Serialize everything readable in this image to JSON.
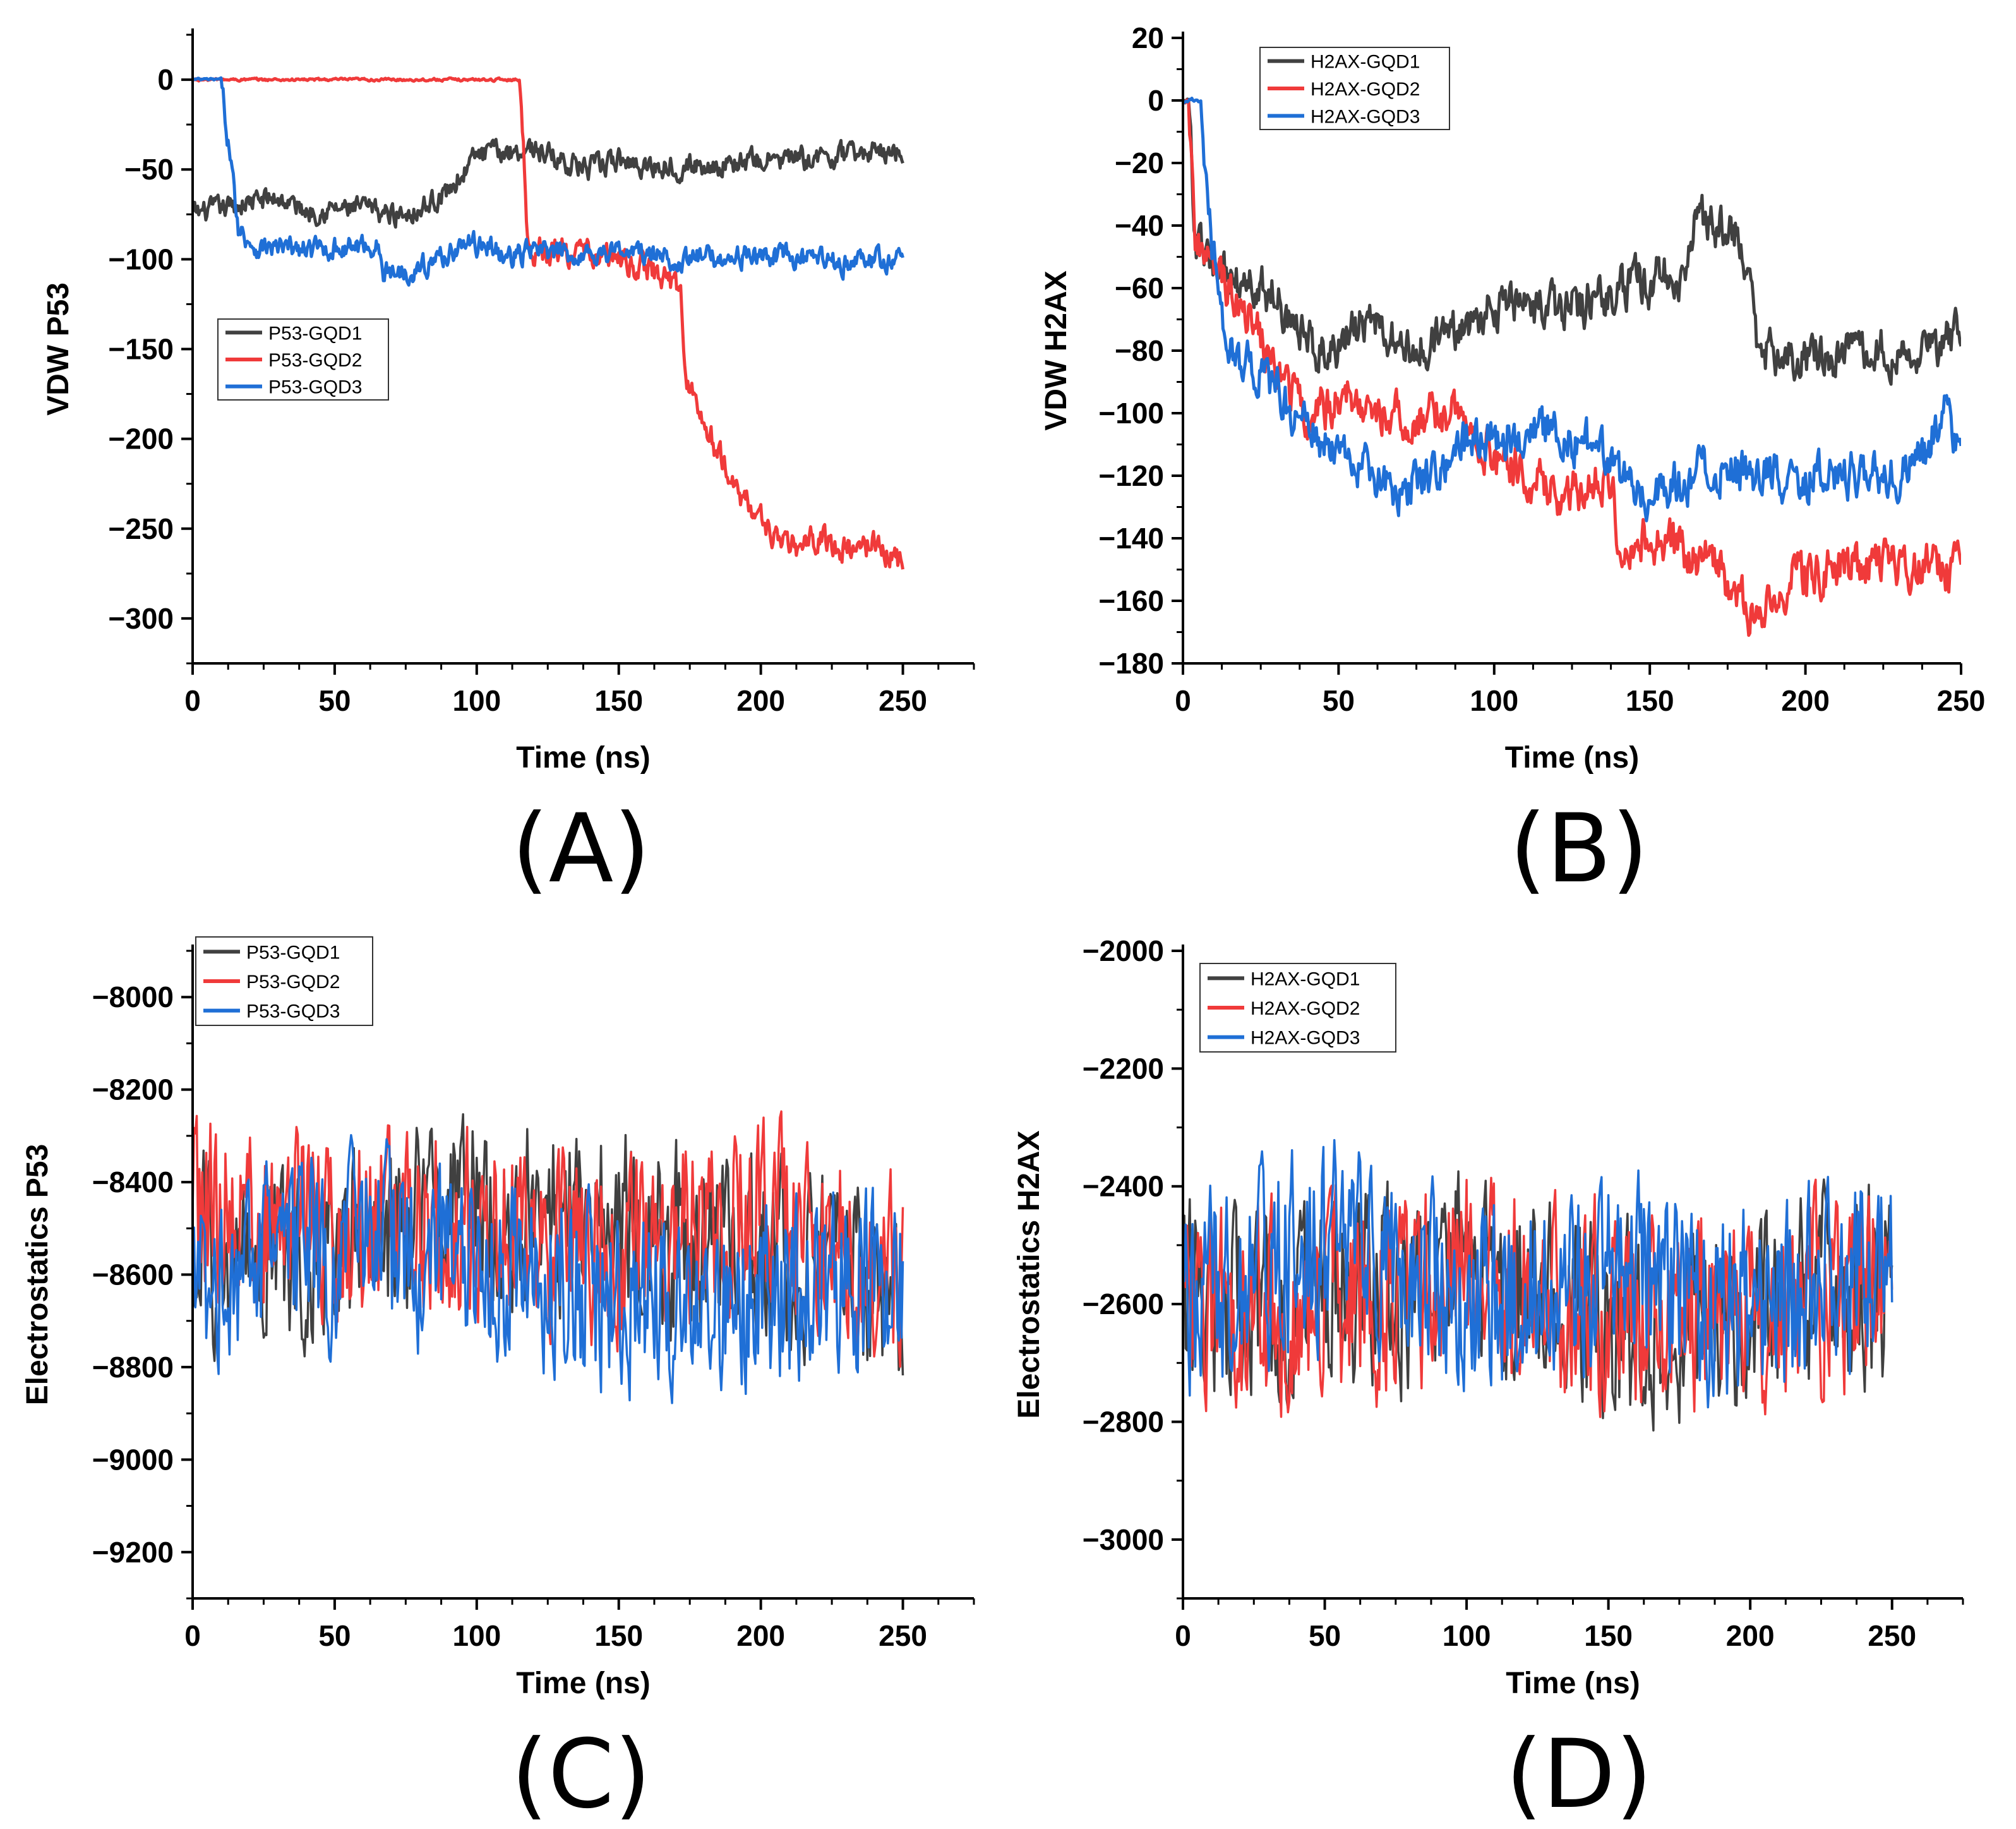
{
  "figure": {
    "colors": {
      "GQD1": "#404040",
      "GQD2": "#f03a3a",
      "GQD3": "#1f6fd6"
    }
  },
  "chart_data": [
    {
      "id": "A",
      "panel_label": "(A)",
      "type": "line",
      "xlabel": "Time (ns)",
      "ylabel": "VDW P53",
      "xlim": [
        0,
        275
      ],
      "ylim": [
        -325,
        25
      ],
      "xticks": [
        0,
        50,
        100,
        150,
        200,
        250
      ],
      "yticks": [
        0,
        -50,
        -100,
        -150,
        -200,
        -250,
        -300
      ],
      "xtick_labels": [
        "0",
        "50",
        "100",
        "150",
        "200",
        "250"
      ],
      "ytick_labels": [
        "0",
        "−50",
        "−100",
        "−150",
        "−200",
        "−250",
        "−300"
      ],
      "legend_position": "center-left",
      "series": [
        {
          "name": "P53-GQD1",
          "color_key": "GQD1",
          "noise": 5,
          "keypoints": [
            [
              0,
              -75
            ],
            [
              10,
              -72
            ],
            [
              20,
              -68
            ],
            [
              30,
              -66
            ],
            [
              40,
              -73
            ],
            [
              50,
              -72
            ],
            [
              60,
              -72
            ],
            [
              70,
              -75
            ],
            [
              80,
              -72
            ],
            [
              90,
              -62
            ],
            [
              100,
              -42
            ],
            [
              110,
              -40
            ],
            [
              120,
              -38
            ],
            [
              130,
              -45
            ],
            [
              140,
              -50
            ],
            [
              150,
              -45
            ],
            [
              160,
              -48
            ],
            [
              180,
              -48
            ],
            [
              200,
              -45
            ],
            [
              220,
              -44
            ],
            [
              240,
              -40
            ],
            [
              250,
              -40
            ]
          ]
        },
        {
          "name": "P53-GQD2",
          "color_key": "GQD2",
          "noise": 6,
          "keypoints": [
            [
              0,
              0
            ],
            [
              115,
              0
            ],
            [
              117,
              -50
            ],
            [
              118,
              -95
            ],
            [
              130,
              -95
            ],
            [
              150,
              -100
            ],
            [
              165,
              -108
            ],
            [
              172,
              -118
            ],
            [
              173,
              -160
            ],
            [
              178,
              -185
            ],
            [
              190,
              -225
            ],
            [
              200,
              -245
            ],
            [
              210,
              -262
            ],
            [
              220,
              -255
            ],
            [
              230,
              -262
            ],
            [
              240,
              -258
            ],
            [
              250,
              -270
            ]
          ]
        },
        {
          "name": "P53-GQD3",
          "color_key": "GQD3",
          "noise": 5,
          "keypoints": [
            [
              0,
              0
            ],
            [
              10,
              0
            ],
            [
              13,
              -40
            ],
            [
              16,
              -82
            ],
            [
              22,
              -93
            ],
            [
              40,
              -95
            ],
            [
              65,
              -92
            ],
            [
              67,
              -108
            ],
            [
              80,
              -105
            ],
            [
              95,
              -92
            ],
            [
              105,
              -92
            ],
            [
              110,
              -100
            ],
            [
              120,
              -95
            ],
            [
              130,
              -98
            ],
            [
              150,
              -95
            ],
            [
              170,
              -100
            ],
            [
              200,
              -98
            ],
            [
              230,
              -102
            ],
            [
              250,
              -100
            ]
          ]
        }
      ]
    },
    {
      "id": "B",
      "panel_label": "(B)",
      "type": "line",
      "xlabel": "Time (ns)",
      "ylabel": "VDW H2AX",
      "xlim": [
        0,
        250
      ],
      "ylim": [
        -180,
        20
      ],
      "xticks": [
        0,
        50,
        100,
        150,
        200,
        250
      ],
      "yticks": [
        20,
        0,
        -20,
        -40,
        -60,
        -80,
        -100,
        -120,
        -140,
        -160,
        -180
      ],
      "xtick_labels": [
        "0",
        "50",
        "100",
        "150",
        "200",
        "250"
      ],
      "ytick_labels": [
        "20",
        "0",
        "−20",
        "−40",
        "−60",
        "−80",
        "−100",
        "−120",
        "−140",
        "−160",
        "−180"
      ],
      "legend_position": "top-left",
      "series": [
        {
          "name": "H2AX-GQD1",
          "color_key": "GQD1",
          "noise": 6,
          "keypoints": [
            [
              0,
              0
            ],
            [
              2,
              0
            ],
            [
              4,
              -45
            ],
            [
              10,
              -55
            ],
            [
              30,
              -62
            ],
            [
              40,
              -78
            ],
            [
              50,
              -78
            ],
            [
              60,
              -70
            ],
            [
              70,
              -80
            ],
            [
              80,
              -78
            ],
            [
              100,
              -65
            ],
            [
              120,
              -68
            ],
            [
              140,
              -60
            ],
            [
              160,
              -55
            ],
            [
              165,
              -38
            ],
            [
              175,
              -40
            ],
            [
              180,
              -45
            ],
            [
              185,
              -80
            ],
            [
              200,
              -82
            ],
            [
              220,
              -80
            ],
            [
              240,
              -78
            ],
            [
              250,
              -75
            ]
          ]
        },
        {
          "name": "H2AX-GQD2",
          "color_key": "GQD2",
          "noise": 6,
          "keypoints": [
            [
              0,
              0
            ],
            [
              2,
              0
            ],
            [
              4,
              -45
            ],
            [
              10,
              -55
            ],
            [
              20,
              -65
            ],
            [
              30,
              -88
            ],
            [
              40,
              -100
            ],
            [
              55,
              -95
            ],
            [
              70,
              -102
            ],
            [
              90,
              -100
            ],
            [
              100,
              -115
            ],
            [
              120,
              -125
            ],
            [
              130,
              -125
            ],
            [
              138,
              -118
            ],
            [
              140,
              -142
            ],
            [
              150,
              -140
            ],
            [
              170,
              -148
            ],
            [
              185,
              -168
            ],
            [
              195,
              -152
            ],
            [
              210,
              -150
            ],
            [
              230,
              -148
            ],
            [
              250,
              -150
            ]
          ]
        },
        {
          "name": "H2AX-GQD3",
          "color_key": "GQD3",
          "noise": 6,
          "keypoints": [
            [
              0,
              0
            ],
            [
              6,
              0
            ],
            [
              8,
              -40
            ],
            [
              15,
              -80
            ],
            [
              25,
              -88
            ],
            [
              45,
              -110
            ],
            [
              60,
              -120
            ],
            [
              70,
              -125
            ],
            [
              90,
              -110
            ],
            [
              110,
              -105
            ],
            [
              130,
              -110
            ],
            [
              140,
              -120
            ],
            [
              150,
              -125
            ],
            [
              170,
              -118
            ],
            [
              190,
              -120
            ],
            [
              210,
              -120
            ],
            [
              235,
              -118
            ],
            [
              245,
              -100
            ],
            [
              248,
              -110
            ],
            [
              250,
              -115
            ]
          ]
        }
      ]
    },
    {
      "id": "C",
      "panel_label": "(C)",
      "type": "line",
      "xlabel": "Time (ns)",
      "ylabel": "Electrostatics P53",
      "xlim": [
        0,
        275
      ],
      "ylim": [
        -9300,
        -7900
      ],
      "xticks": [
        0,
        50,
        100,
        150,
        200,
        250
      ],
      "yticks": [
        -8000,
        -8200,
        -8400,
        -8600,
        -8800,
        -9000,
        -9200
      ],
      "xtick_labels": [
        "0",
        "50",
        "100",
        "150",
        "200",
        "250"
      ],
      "ytick_labels": [
        "−8000",
        "−8200",
        "−8400",
        "−8600",
        "−8800",
        "−9000",
        "−9200"
      ],
      "legend_position": "top-left",
      "series": [
        {
          "name": "P53-GQD1",
          "color_key": "GQD1",
          "noise": 130,
          "keypoints": [
            [
              0,
              -8550
            ],
            [
              50,
              -8550
            ],
            [
              100,
              -8450
            ],
            [
              150,
              -8500
            ],
            [
              200,
              -8550
            ],
            [
              250,
              -8650
            ]
          ]
        },
        {
          "name": "P53-GQD2",
          "color_key": "GQD2",
          "noise": 130,
          "keypoints": [
            [
              0,
              -8450
            ],
            [
              50,
              -8500
            ],
            [
              100,
              -8500
            ],
            [
              150,
              -8550
            ],
            [
              200,
              -8450
            ],
            [
              250,
              -8600
            ]
          ]
        },
        {
          "name": "P53-GQD3",
          "color_key": "GQD3",
          "noise": 130,
          "keypoints": [
            [
              0,
              -8600
            ],
            [
              50,
              -8550
            ],
            [
              100,
              -8550
            ],
            [
              150,
              -8650
            ],
            [
              200,
              -8650
            ],
            [
              250,
              -8600
            ]
          ]
        }
      ]
    },
    {
      "id": "D",
      "panel_label": "(D)",
      "type": "line",
      "xlabel": "Time (ns)",
      "ylabel": "Electrostatics H2AX",
      "xlim": [
        0,
        275
      ],
      "ylim": [
        -3100,
        -2000
      ],
      "xticks": [
        0,
        50,
        100,
        150,
        200,
        250
      ],
      "yticks": [
        -2000,
        -2200,
        -2400,
        -2600,
        -2800,
        -3000
      ],
      "xtick_labels": [
        "0",
        "50",
        "100",
        "150",
        "200",
        "250"
      ],
      "ytick_labels": [
        "−2000",
        "−2200",
        "−2400",
        "−2600",
        "−2800",
        "−3000"
      ],
      "legend_position": "top-left",
      "series": [
        {
          "name": "H2AX-GQD1",
          "color_key": "GQD1",
          "noise": 110,
          "keypoints": [
            [
              0,
              -2600
            ],
            [
              50,
              -2600
            ],
            [
              100,
              -2550
            ],
            [
              150,
              -2650
            ],
            [
              200,
              -2600
            ],
            [
              250,
              -2550
            ]
          ]
        },
        {
          "name": "H2AX-GQD2",
          "color_key": "GQD2",
          "noise": 110,
          "keypoints": [
            [
              0,
              -2600
            ],
            [
              50,
              -2600
            ],
            [
              100,
              -2550
            ],
            [
              150,
              -2600
            ],
            [
              200,
              -2620
            ],
            [
              250,
              -2560
            ]
          ]
        },
        {
          "name": "H2AX-GQD3",
          "color_key": "GQD3",
          "noise": 110,
          "keypoints": [
            [
              0,
              -2600
            ],
            [
              50,
              -2500
            ],
            [
              100,
              -2600
            ],
            [
              150,
              -2550
            ],
            [
              200,
              -2600
            ],
            [
              250,
              -2550
            ]
          ]
        }
      ]
    }
  ]
}
